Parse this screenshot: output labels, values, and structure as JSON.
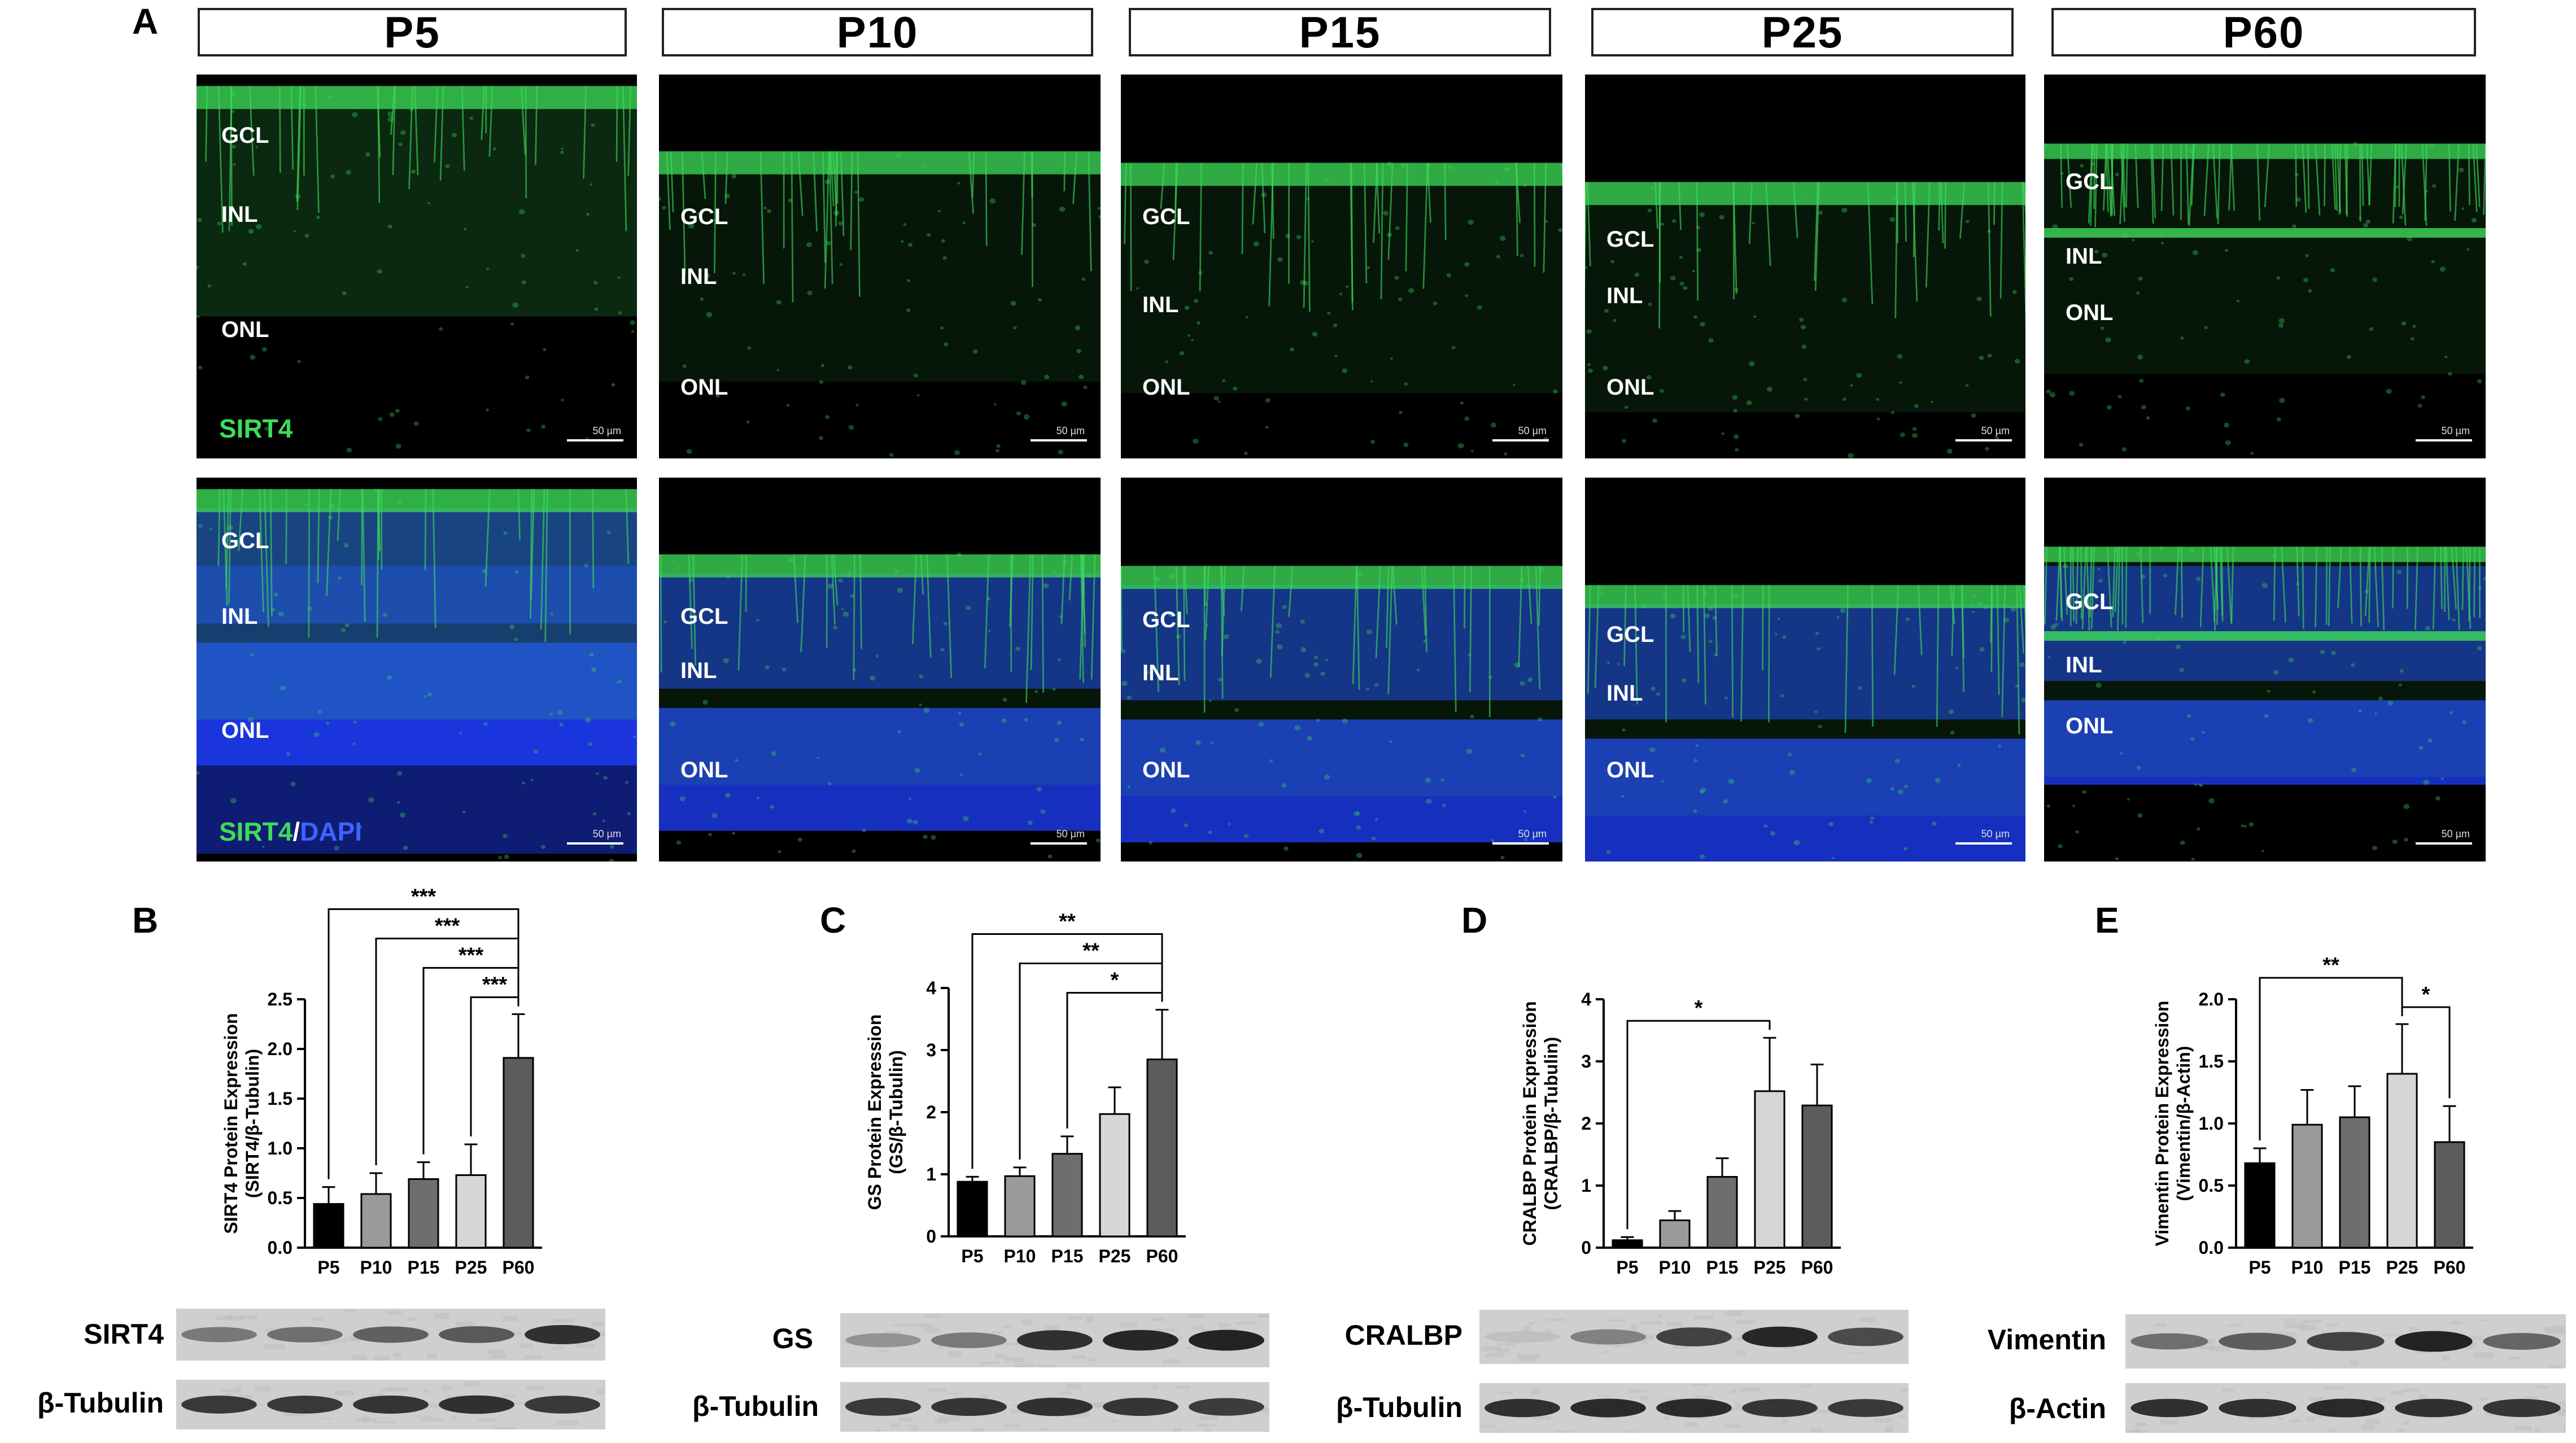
{
  "panels": {
    "A": "A",
    "B": "B",
    "C": "C",
    "D": "D",
    "E": "E"
  },
  "timepoints": [
    "P5",
    "P10",
    "P15",
    "P25",
    "P60"
  ],
  "layers": {
    "gcl": "GCL",
    "inl": "INL",
    "onl": "ONL"
  },
  "scale_bar": "50 µm",
  "stains": {
    "sirt4": "SIRT4",
    "slash": "/",
    "dapi": "DAPI"
  },
  "colors": {
    "green": "#3ddc5a",
    "blue": "#1f3fff",
    "bar_P5": "#000000",
    "bar_P10": "#9a9a9a",
    "bar_P15": "#6e6e6e",
    "bar_P25": "#d6d6d6",
    "bar_P60": "#5c5c5c"
  },
  "blots": {
    "B": {
      "target": "SIRT4",
      "loading": "β-Tubulin",
      "target_intensity": [
        0.45,
        0.5,
        0.58,
        0.62,
        0.85
      ],
      "loading_intensity": [
        0.8,
        0.8,
        0.82,
        0.85,
        0.8
      ]
    },
    "C": {
      "target": "GS",
      "loading": "β-Tubulin",
      "target_intensity": [
        0.3,
        0.45,
        0.85,
        0.9,
        0.92
      ],
      "loading_intensity": [
        0.8,
        0.82,
        0.85,
        0.82,
        0.78
      ]
    },
    "D": {
      "target": "CRALBP",
      "loading": "β-Tubulin",
      "target_intensity": [
        0.05,
        0.4,
        0.75,
        0.9,
        0.7
      ],
      "loading_intensity": [
        0.85,
        0.88,
        0.88,
        0.82,
        0.8
      ]
    },
    "E": {
      "target": "Vimentin",
      "loading": "β-Actin",
      "target_intensity": [
        0.5,
        0.6,
        0.75,
        0.92,
        0.55
      ],
      "loading_intensity": [
        0.85,
        0.85,
        0.88,
        0.85,
        0.82
      ]
    }
  },
  "chart_data": [
    {
      "type": "bar",
      "panel": "B",
      "categories": [
        "P5",
        "P10",
        "P15",
        "P25",
        "P60"
      ],
      "values": [
        0.44,
        0.54,
        0.69,
        0.73,
        1.91
      ],
      "errors": [
        0.17,
        0.21,
        0.17,
        0.31,
        0.44
      ],
      "ylabel": "SIRT4 Protein Expression",
      "ylabel2": "(SIRT4/β-Tubulin)",
      "ylim": [
        0,
        2.5
      ],
      "yticks": [
        "0.0",
        "0.5",
        "1.0",
        "1.5",
        "2.0",
        "2.5"
      ],
      "tick_values": [
        0,
        0.5,
        1,
        1.5,
        2,
        2.5
      ],
      "significance": [
        {
          "from": "P5",
          "to": "P60",
          "label": "***"
        },
        {
          "from": "P10",
          "to": "P60",
          "label": "***"
        },
        {
          "from": "P15",
          "to": "P60",
          "label": "***"
        },
        {
          "from": "P25",
          "to": "P60",
          "label": "***"
        }
      ]
    },
    {
      "type": "bar",
      "panel": "C",
      "categories": [
        "P5",
        "P10",
        "P15",
        "P25",
        "P60"
      ],
      "values": [
        0.88,
        0.97,
        1.33,
        1.97,
        2.85
      ],
      "errors": [
        0.08,
        0.14,
        0.28,
        0.43,
        0.8
      ],
      "ylabel": "GS Protein Expression",
      "ylabel2": "(GS/β-Tubulin)",
      "ylim": [
        0,
        4
      ],
      "yticks": [
        "0",
        "1",
        "2",
        "3",
        "4"
      ],
      "tick_values": [
        0,
        1,
        2,
        3,
        4
      ],
      "significance": [
        {
          "from": "P5",
          "to": "P60",
          "label": "**"
        },
        {
          "from": "P10",
          "to": "P60",
          "label": "**"
        },
        {
          "from": "P15",
          "to": "P60",
          "label": "*"
        }
      ]
    },
    {
      "type": "bar",
      "panel": "D",
      "categories": [
        "P5",
        "P10",
        "P15",
        "P25",
        "P60"
      ],
      "values": [
        0.12,
        0.44,
        1.14,
        2.52,
        2.29
      ],
      "errors": [
        0.05,
        0.15,
        0.3,
        0.86,
        0.66
      ],
      "ylabel": "CRALBP Protein Expression",
      "ylabel2": "(CRALBP/β-Tubulin)",
      "ylim": [
        0,
        4
      ],
      "yticks": [
        "0",
        "1",
        "2",
        "3",
        "4"
      ],
      "tick_values": [
        0,
        1,
        2,
        3,
        4
      ],
      "significance": [
        {
          "from": "P5",
          "to": "P25",
          "label": "*"
        }
      ]
    },
    {
      "type": "bar",
      "panel": "E",
      "categories": [
        "P5",
        "P10",
        "P15",
        "P25",
        "P60"
      ],
      "values": [
        0.68,
        0.99,
        1.05,
        1.4,
        0.85
      ],
      "errors": [
        0.12,
        0.28,
        0.25,
        0.4,
        0.29
      ],
      "ylabel": "Vimentin Protein Expression",
      "ylabel2": "(Vimentin/β-Actin)",
      "ylim": [
        0,
        2
      ],
      "yticks": [
        "0.0",
        "0.5",
        "1.0",
        "1.5",
        "2.0"
      ],
      "tick_values": [
        0,
        0.5,
        1,
        1.5,
        2
      ],
      "significance": [
        {
          "from": "P5",
          "to": "P25",
          "label": "**"
        },
        {
          "from": "P25",
          "to": "P60",
          "label": "*"
        }
      ]
    }
  ]
}
